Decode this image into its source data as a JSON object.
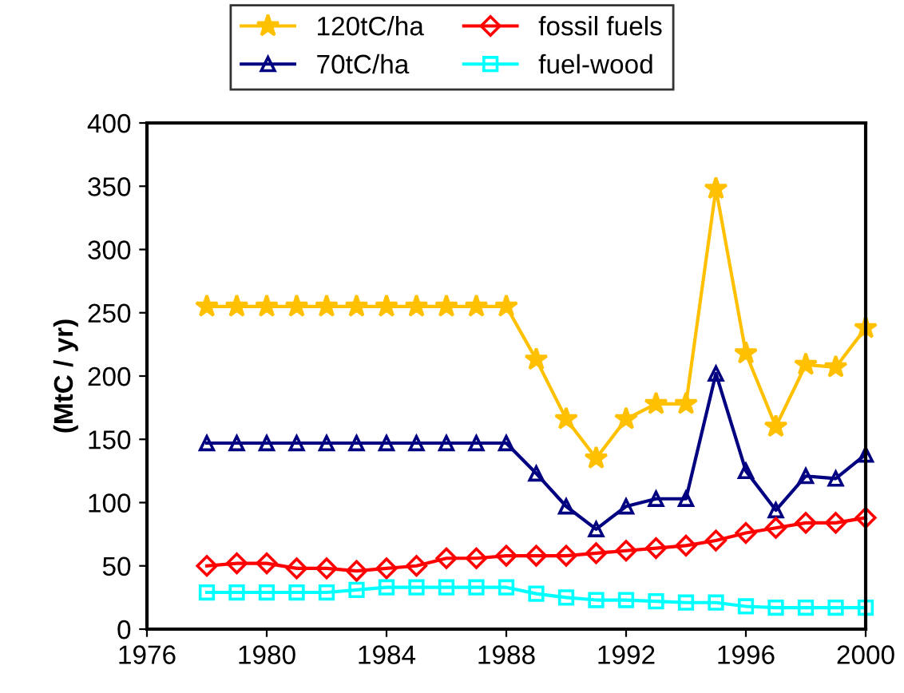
{
  "chart_data": {
    "type": "line",
    "ylabel": "(MtC / yr)",
    "x": [
      1978,
      1979,
      1980,
      1981,
      1982,
      1983,
      1984,
      1985,
      1986,
      1987,
      1988,
      1989,
      1990,
      1991,
      1992,
      1993,
      1994,
      1995,
      1996,
      1997,
      1998,
      1999,
      2000
    ],
    "series": [
      {
        "name": "120tC/ha",
        "color": "#ffc000",
        "marker": "star",
        "values": [
          255,
          255,
          255,
          255,
          255,
          255,
          255,
          255,
          255,
          255,
          255,
          213,
          166,
          135,
          166,
          178,
          178,
          348,
          218,
          160,
          209,
          207,
          238
        ]
      },
      {
        "name": "70tC/ha",
        "color": "#000080",
        "marker": "triangle",
        "values": [
          147,
          147,
          147,
          147,
          147,
          147,
          147,
          147,
          147,
          147,
          147,
          123,
          97,
          79,
          97,
          103,
          103,
          202,
          125,
          94,
          121,
          119,
          138
        ]
      },
      {
        "name": "fossil fuels",
        "color": "#ff0000",
        "marker": "diamond",
        "values": [
          50,
          52,
          52,
          48,
          48,
          46,
          48,
          50,
          56,
          56,
          58,
          58,
          58,
          60,
          62,
          64,
          66,
          70,
          76,
          80,
          84,
          84,
          88
        ]
      },
      {
        "name": "fuel-wood",
        "color": "#00ffff",
        "marker": "square",
        "values": [
          29,
          29,
          29,
          29,
          29,
          31,
          33,
          33,
          33,
          33,
          33,
          28,
          25,
          23,
          23,
          22,
          21,
          21,
          18,
          17,
          17,
          17,
          17
        ]
      }
    ],
    "xlim": [
      1976,
      2000
    ],
    "xticks": [
      1976,
      1980,
      1984,
      1988,
      1992,
      1996,
      2000
    ],
    "ylim": [
      0,
      400
    ],
    "yticks": [
      0,
      50,
      100,
      150,
      200,
      250,
      300,
      350,
      400
    ],
    "grid": false,
    "legend": "top",
    "line_style": "solid"
  }
}
